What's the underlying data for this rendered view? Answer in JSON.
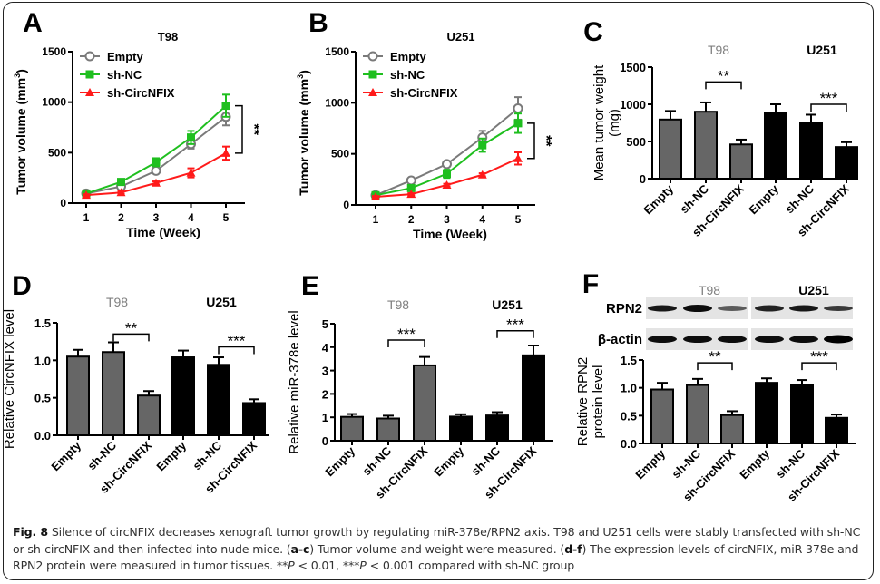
{
  "figure": {
    "caption": {
      "label": "Fig. 8",
      "text_1": " Silence of circNFIX decreases xenograft tumor growth by regulating miR-378e/RPN2 axis. T98 and U251 cells were stably transfected with sh-NC or sh-circNFIX and then infected into nude mice. (",
      "ref_ac": "a-c",
      "text_2": ") Tumor volume and weight were measured. (",
      "ref_df": "d-f",
      "text_3": ") The expression levels of circNFIX, miR-378e and RPN2 protein were measured in tumor tissues. **",
      "p1": "P",
      "text_4": " < 0.01, ***",
      "p2": "P",
      "text_5": " < 0.001 compared with sh-NC group"
    },
    "colors": {
      "empty": "#7a7a7a",
      "sh_nc": "#1fbf1f",
      "sh_circ": "#ff1a1a",
      "t98_bar": "#666666",
      "u251_bar": "#000000",
      "t98_label": "#808080",
      "u251_label": "#000000"
    }
  },
  "chart_data": [
    {
      "panel": "A",
      "type": "line",
      "title": "T98",
      "xlabel": "Time (Week)",
      "ylabel": "Tumor volume (mm3)",
      "x": [
        1,
        2,
        3,
        4,
        5
      ],
      "xticks": [
        "1",
        "2",
        "3",
        "4",
        "5"
      ],
      "ylim": [
        0,
        1500
      ],
      "yticks": [
        "0",
        "500",
        "1000",
        "1500"
      ],
      "legend": "top-left",
      "series": [
        {
          "name": "Empty",
          "marker": "circle",
          "values": [
            95,
            165,
            320,
            585,
            855
          ],
          "errors": [
            10,
            15,
            25,
            45,
            85
          ]
        },
        {
          "name": "sh-NC",
          "marker": "square",
          "values": [
            95,
            210,
            405,
            650,
            965
          ],
          "errors": [
            10,
            18,
            40,
            65,
            110
          ]
        },
        {
          "name": "sh-CircNFIX",
          "marker": "triangle",
          "values": [
            80,
            105,
            200,
            300,
            495
          ],
          "errors": [
            8,
            12,
            15,
            45,
            65
          ]
        }
      ],
      "significance": {
        "label": "**",
        "between": [
          "sh-NC",
          "sh-CircNFIX"
        ],
        "at_x": 5
      }
    },
    {
      "panel": "B",
      "type": "line",
      "title": "U251",
      "xlabel": "Time (Week)",
      "ylabel": "Tumor volume (mm3)",
      "x": [
        1,
        2,
        3,
        4,
        5
      ],
      "xticks": [
        "1",
        "2",
        "3",
        "4",
        "5"
      ],
      "ylim": [
        0,
        1500
      ],
      "yticks": [
        "0",
        "500",
        "1000",
        "1500"
      ],
      "legend": "top-left",
      "series": [
        {
          "name": "Empty",
          "marker": "circle",
          "values": [
            95,
            240,
            400,
            660,
            945
          ],
          "errors": [
            10,
            15,
            20,
            65,
            110
          ]
        },
        {
          "name": "sh-NC",
          "marker": "square",
          "values": [
            95,
            165,
            305,
            585,
            800
          ],
          "errors": [
            10,
            15,
            40,
            65,
            95
          ]
        },
        {
          "name": "sh-CircNFIX",
          "marker": "triangle",
          "values": [
            80,
            105,
            195,
            295,
            455
          ],
          "errors": [
            8,
            10,
            12,
            15,
            60
          ]
        }
      ],
      "significance": {
        "label": "**",
        "between": [
          "sh-NC",
          "sh-CircNFIX"
        ],
        "at_x": 5
      }
    },
    {
      "panel": "C",
      "type": "bar",
      "group_labels": [
        "T98",
        "U251"
      ],
      "categories": [
        "Empty",
        "sh-NC",
        "sh-CircNFIX",
        "Empty",
        "sh-NC",
        "sh-CircNFIX"
      ],
      "groups": [
        "T98",
        "T98",
        "T98",
        "U251",
        "U251",
        "U251"
      ],
      "values": [
        795,
        900,
        460,
        880,
        750,
        425
      ],
      "errors": [
        115,
        125,
        65,
        120,
        110,
        65
      ],
      "ylabel": "Mean tumor weight (mg)",
      "ylim": [
        0,
        1500
      ],
      "yticks": [
        "0",
        "500",
        "1000",
        "1500"
      ],
      "significance": [
        {
          "label": "**",
          "from": 1,
          "to": 2,
          "y": 1300
        },
        {
          "label": "***",
          "from": 4,
          "to": 5,
          "y": 1000
        }
      ]
    },
    {
      "panel": "D",
      "type": "bar",
      "group_labels": [
        "T98",
        "U251"
      ],
      "categories": [
        "Empty",
        "sh-NC",
        "sh-CircNFIX",
        "Empty",
        "sh-NC",
        "sh-CircNFIX"
      ],
      "groups": [
        "T98",
        "T98",
        "T98",
        "U251",
        "U251",
        "U251"
      ],
      "values": [
        1.05,
        1.11,
        0.53,
        1.04,
        0.94,
        0.43
      ],
      "errors": [
        0.09,
        0.13,
        0.06,
        0.09,
        0.1,
        0.05
      ],
      "ylabel": "Relative CircNFIX level",
      "ylim": [
        0,
        1.5
      ],
      "yticks": [
        "0.0",
        "0.5",
        "1.0",
        "1.5"
      ],
      "significance": [
        {
          "label": "**",
          "from": 1,
          "to": 2,
          "y": 1.35
        },
        {
          "label": "***",
          "from": 4,
          "to": 5,
          "y": 1.18
        }
      ]
    },
    {
      "panel": "E",
      "type": "bar",
      "group_labels": [
        "T98",
        "U251"
      ],
      "categories": [
        "Empty",
        "sh-NC",
        "sh-CircNFIX",
        "Empty",
        "sh-NC",
        "sh-CircNFIX"
      ],
      "groups": [
        "T98",
        "T98",
        "T98",
        "U251",
        "U251",
        "U251"
      ],
      "values": [
        1.02,
        0.95,
        3.22,
        1.03,
        1.08,
        3.65
      ],
      "errors": [
        0.12,
        0.12,
        0.36,
        0.1,
        0.14,
        0.42
      ],
      "ylabel": "Relative miR-378e level",
      "ylim": [
        0,
        5
      ],
      "yticks": [
        "0",
        "1",
        "2",
        "3",
        "4",
        "5"
      ],
      "significance": [
        {
          "label": "***",
          "from": 1,
          "to": 2,
          "y": 4.3
        },
        {
          "label": "***",
          "from": 4,
          "to": 5,
          "y": 4.7
        }
      ]
    },
    {
      "panel": "F",
      "type": "bar",
      "group_labels": [
        "T98",
        "U251"
      ],
      "blot_rows": [
        "RPN2",
        "β-actin"
      ],
      "categories": [
        "Empty",
        "sh-NC",
        "sh-CircNFIX",
        "Empty",
        "sh-NC",
        "sh-CircNFIX"
      ],
      "groups": [
        "T98",
        "T98",
        "T98",
        "U251",
        "U251",
        "U251"
      ],
      "values": [
        0.97,
        1.05,
        0.51,
        1.09,
        1.05,
        0.46
      ],
      "errors": [
        0.12,
        0.11,
        0.07,
        0.08,
        0.09,
        0.06
      ],
      "ylabel": "Relative RPN2 protein level",
      "ylim": [
        0,
        1.5
      ],
      "yticks": [
        "0.0",
        "0.5",
        "1.0",
        "1.5"
      ],
      "significance": [
        {
          "label": "**",
          "from": 1,
          "to": 2,
          "y": 1.45
        },
        {
          "label": "***",
          "from": 4,
          "to": 5,
          "y": 1.45
        }
      ]
    }
  ]
}
